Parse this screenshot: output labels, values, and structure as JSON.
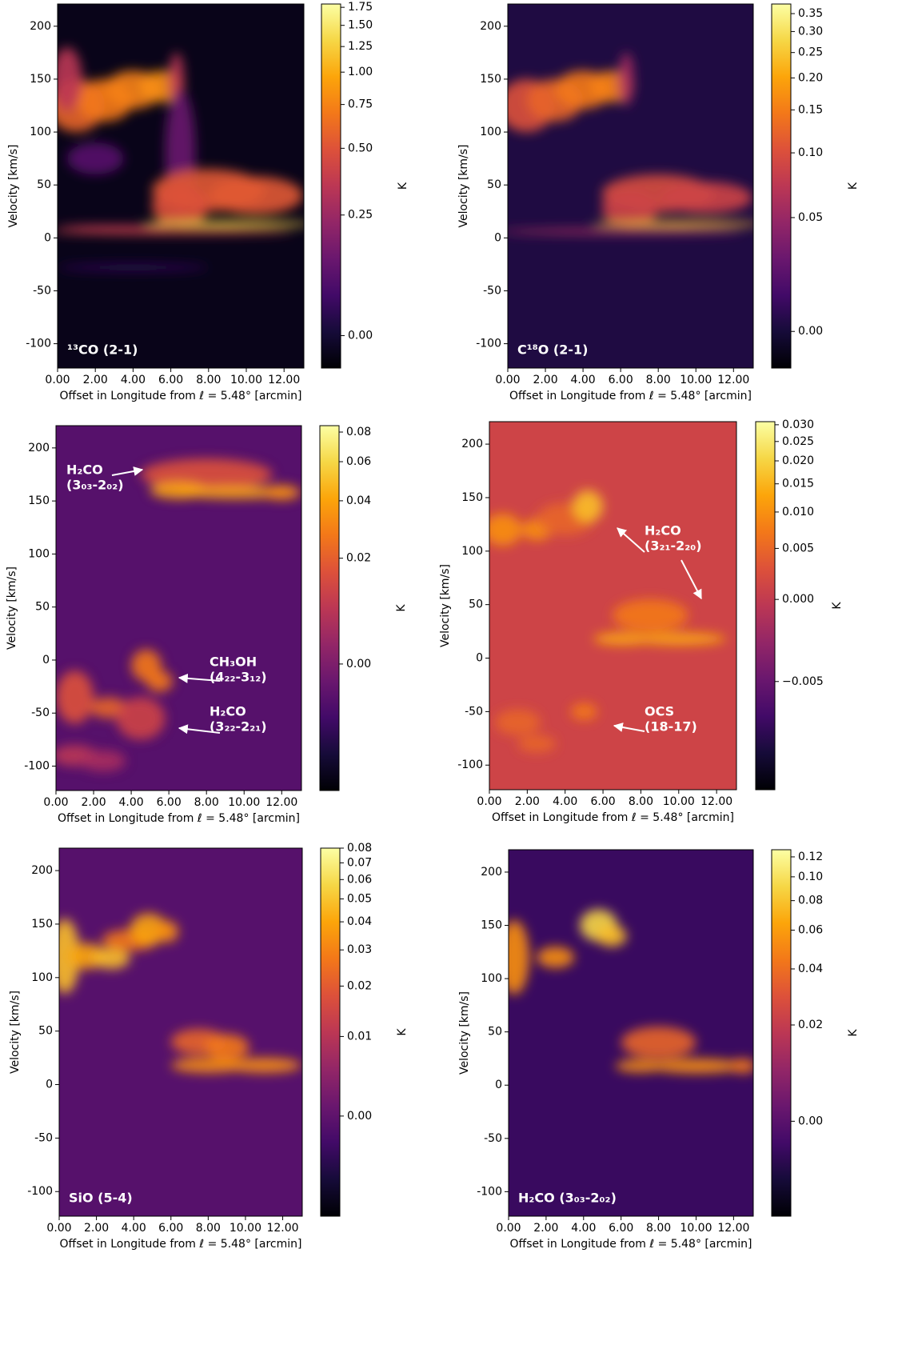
{
  "chart_data": [
    {
      "type": "heatmap",
      "title": "¹³CO (2-1)",
      "xlabel": "Offset in Longitude from ℓ = 5.48° [arcmin]",
      "ylabel": "Velocity [km/s]",
      "xlim": [
        0,
        13.05
      ],
      "xticks": [
        {
          "value": 0,
          "label": "0.00"
        },
        {
          "value": 2,
          "label": "2.00"
        },
        {
          "value": 4,
          "label": "4.00"
        },
        {
          "value": 6,
          "label": "6.00"
        },
        {
          "value": 8,
          "label": "8.00"
        },
        {
          "value": 10,
          "label": "10.00"
        },
        {
          "value": 12,
          "label": "12.00"
        }
      ],
      "ylim": [
        -123,
        221
      ],
      "yticks": [
        -100,
        -50,
        0,
        50,
        100,
        150,
        200
      ],
      "cmap": "inferno",
      "colorbar_label": "K",
      "clim": [
        -0.05,
        1.8
      ],
      "cbar_ticks": [
        {
          "value": 0,
          "label": "0.00"
        },
        {
          "value": 0.25,
          "label": "0.25"
        },
        {
          "value": 0.5,
          "label": "0.50"
        },
        {
          "value": 0.75,
          "label": "0.75"
        },
        {
          "value": 1,
          "label": "1.00"
        },
        {
          "value": 1.25,
          "label": "1.25"
        },
        {
          "value": 1.5,
          "label": "1.50"
        },
        {
          "value": 1.75,
          "label": "1.75"
        }
      ]
    },
    {
      "type": "heatmap",
      "title": "C¹⁸O (2-1)",
      "xlabel": "Offset in Longitude from ℓ = 5.48° [arcmin]",
      "ylabel": "Velocity [km/s]",
      "xlim": [
        0,
        13.05
      ],
      "xticks": [
        {
          "value": 0,
          "label": "0.00"
        },
        {
          "value": 2,
          "label": "2.00"
        },
        {
          "value": 4,
          "label": "4.00"
        },
        {
          "value": 6,
          "label": "6.00"
        },
        {
          "value": 8,
          "label": "8.00"
        },
        {
          "value": 10,
          "label": "10.00"
        },
        {
          "value": 12,
          "label": "12.00"
        }
      ],
      "ylim": [
        -123,
        221
      ],
      "yticks": [
        -100,
        -50,
        0,
        50,
        100,
        150,
        200
      ],
      "cmap": "inferno",
      "colorbar_label": "K",
      "clim": [
        -0.012,
        0.38
      ],
      "cbar_ticks": [
        {
          "value": 0,
          "label": "0.00"
        },
        {
          "value": 0.05,
          "label": "0.05"
        },
        {
          "value": 0.1,
          "label": "0.10"
        },
        {
          "value": 0.15,
          "label": "0.15"
        },
        {
          "value": 0.2,
          "label": "0.20"
        },
        {
          "value": 0.25,
          "label": "0.25"
        },
        {
          "value": 0.3,
          "label": "0.30"
        },
        {
          "value": 0.35,
          "label": "0.35"
        }
      ]
    },
    {
      "type": "heatmap",
      "xlabel": "Offset in Longitude from ℓ = 5.48° [arcmin]",
      "ylabel": "Velocity [km/s]",
      "xlim": [
        0,
        13.05
      ],
      "xticks": [
        {
          "value": 0,
          "label": "0.00"
        },
        {
          "value": 2,
          "label": "2.00"
        },
        {
          "value": 4,
          "label": "4.00"
        },
        {
          "value": 6,
          "label": "6.00"
        },
        {
          "value": 8,
          "label": "8.00"
        },
        {
          "value": 10,
          "label": "10.00"
        },
        {
          "value": 12,
          "label": "12.00"
        }
      ],
      "ylim": [
        -123,
        221
      ],
      "yticks": [
        -100,
        -50,
        0,
        50,
        100,
        150,
        200
      ],
      "cmap": "inferno",
      "colorbar_label": "K",
      "clim": [
        -0.012,
        0.085
      ],
      "cbar_ticks": [
        {
          "value": 0,
          "label": "0.00"
        },
        {
          "value": 0.02,
          "label": "0.02"
        },
        {
          "value": 0.04,
          "label": "0.04"
        },
        {
          "value": 0.06,
          "label": "0.06"
        },
        {
          "value": 0.08,
          "label": "0.08"
        }
      ],
      "annotations": [
        [
          "H₂CO",
          "(3₀₃-2₀₂)"
        ],
        [
          "CH₃OH",
          "(4₂₂-3₁₂)"
        ],
        [
          "H₂CO",
          "(3₂₂-2₂₁)"
        ]
      ]
    },
    {
      "type": "heatmap",
      "xlabel": "Offset in Longitude from ℓ = 5.48° [arcmin]",
      "ylabel": "Velocity [km/s]",
      "xlim": [
        0,
        13.05
      ],
      "xticks": [
        {
          "value": 0,
          "label": "0.00"
        },
        {
          "value": 2,
          "label": "2.00"
        },
        {
          "value": 4,
          "label": "4.00"
        },
        {
          "value": 6,
          "label": "6.00"
        },
        {
          "value": 8,
          "label": "8.00"
        },
        {
          "value": 10,
          "label": "10.00"
        },
        {
          "value": 12,
          "label": "12.00"
        }
      ],
      "ylim": [
        -123,
        221
      ],
      "yticks": [
        -100,
        -50,
        0,
        50,
        100,
        150,
        200
      ],
      "cmap": "inferno",
      "colorbar_label": "K",
      "clim": [
        -0.009,
        0.031
      ],
      "cbar_ticks": [
        {
          "value": -0.005,
          "label": "−0.005"
        },
        {
          "value": 0,
          "label": "0.000"
        },
        {
          "value": 0.005,
          "label": "0.005"
        },
        {
          "value": 0.01,
          "label": "0.010"
        },
        {
          "value": 0.015,
          "label": "0.015"
        },
        {
          "value": 0.02,
          "label": "0.020"
        },
        {
          "value": 0.025,
          "label": "0.025"
        },
        {
          "value": 0.03,
          "label": "0.030"
        }
      ],
      "annotations": [
        [
          "H₂CO",
          "(3₂₁-2₂₀)"
        ],
        [
          "OCS",
          "(18-17)"
        ]
      ]
    },
    {
      "type": "heatmap",
      "title": "SiO (5-4)",
      "xlabel": "Offset in Longitude from ℓ = 5.48° [arcmin]",
      "ylabel": "Velocity [km/s]",
      "xlim": [
        0,
        13.05
      ],
      "xticks": [
        {
          "value": 0,
          "label": "0.00"
        },
        {
          "value": 2,
          "label": "2.00"
        },
        {
          "value": 4,
          "label": "4.00"
        },
        {
          "value": 6,
          "label": "6.00"
        },
        {
          "value": 8,
          "label": "8.00"
        },
        {
          "value": 10,
          "label": "10.00"
        },
        {
          "value": 12,
          "label": "12.00"
        }
      ],
      "ylim": [
        -123,
        221
      ],
      "yticks": [
        -100,
        -50,
        0,
        50,
        100,
        150,
        200
      ],
      "cmap": "inferno",
      "colorbar_label": "K",
      "clim": [
        -0.008,
        0.08
      ],
      "cbar_ticks": [
        {
          "value": 0,
          "label": "0.00"
        },
        {
          "value": 0.01,
          "label": "0.01"
        },
        {
          "value": 0.02,
          "label": "0.02"
        },
        {
          "value": 0.03,
          "label": "0.03"
        },
        {
          "value": 0.04,
          "label": "0.04"
        },
        {
          "value": 0.05,
          "label": "0.05"
        },
        {
          "value": 0.06,
          "label": "0.06"
        },
        {
          "value": 0.07,
          "label": "0.07"
        },
        {
          "value": 0.08,
          "label": "0.08"
        }
      ]
    },
    {
      "type": "heatmap",
      "title": "H₂CO (3₀₃-2₀₂)",
      "xlabel": "Offset in Longitude from ℓ = 5.48° [arcmin]",
      "ylabel": "Velocity [km/s]",
      "xlim": [
        0,
        13.05
      ],
      "xticks": [
        {
          "value": 0,
          "label": "0.00"
        },
        {
          "value": 2,
          "label": "2.00"
        },
        {
          "value": 4,
          "label": "4.00"
        },
        {
          "value": 6,
          "label": "6.00"
        },
        {
          "value": 8,
          "label": "8.00"
        },
        {
          "value": 10,
          "label": "10.00"
        },
        {
          "value": 12,
          "label": "12.00"
        }
      ],
      "ylim": [
        -123,
        221
      ],
      "yticks": [
        -100,
        -50,
        0,
        50,
        100,
        150,
        200
      ],
      "cmap": "inferno",
      "colorbar_label": "K",
      "clim": [
        -0.012,
        0.128
      ],
      "cbar_ticks": [
        {
          "value": 0,
          "label": "0.00"
        },
        {
          "value": 0.02,
          "label": "0.02"
        },
        {
          "value": 0.04,
          "label": "0.04"
        },
        {
          "value": 0.06,
          "label": "0.06"
        },
        {
          "value": 0.08,
          "label": "0.08"
        },
        {
          "value": 0.1,
          "label": "0.10"
        },
        {
          "value": 0.12,
          "label": "0.12"
        }
      ]
    }
  ]
}
